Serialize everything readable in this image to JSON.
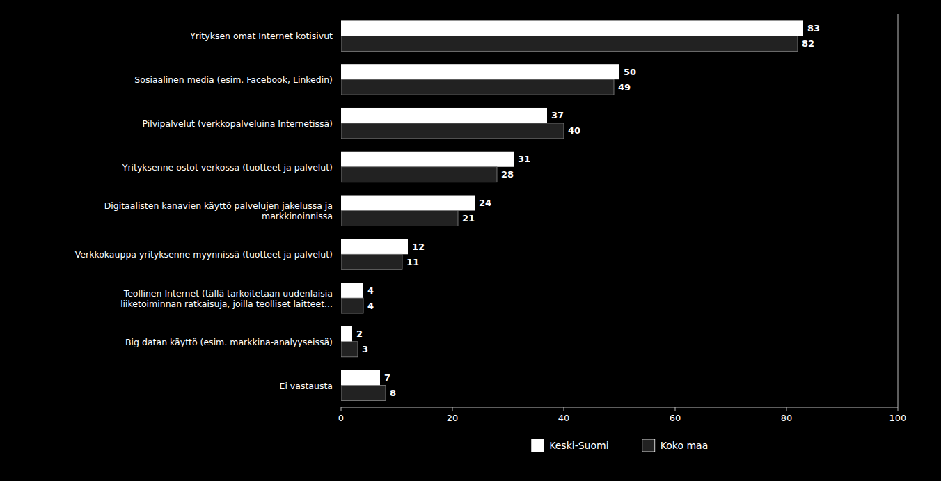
{
  "chart_data": {
    "type": "bar",
    "orientation": "horizontal",
    "categories": [
      "Yrityksen omat Internet kotisivut",
      "Sosiaalinen media (esim. Facebook, Linkedin)",
      "Pilvipalvelut  (verkkopalveluina Internetissä)",
      "Yrityksenne ostot verkossa (tuotteet ja palvelut)",
      "Digitaalisten kanavien käyttö palvelujen jakelussa ja\nmarkkinoinnissa",
      "Verkkokauppa yrityksenne myynnissä (tuotteet ja palvelut)",
      "Teollinen Internet (tällä tarkoitetaan uudenlaisia\nliiketoiminnan ratkaisuja, joilla teolliset laitteet...",
      "Big datan käyttö (esim. markkina-analyyseissä)",
      "Ei vastausta"
    ],
    "series": [
      {
        "name": "Keski-Suomi",
        "color": "#ffffff",
        "values": [
          83,
          50,
          37,
          31,
          24,
          12,
          4,
          2,
          7
        ]
      },
      {
        "name": "Koko maa",
        "color": "#222222",
        "values": [
          82,
          49,
          40,
          28,
          21,
          11,
          4,
          3,
          8
        ]
      }
    ],
    "xlim": [
      0,
      100
    ],
    "xticks": [
      0,
      20,
      40,
      60,
      80,
      100
    ],
    "grid": false,
    "legend": "bottom",
    "data_labels": true
  }
}
